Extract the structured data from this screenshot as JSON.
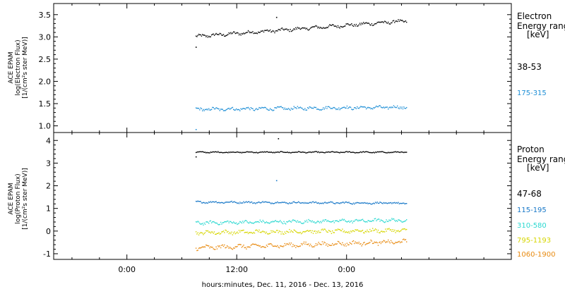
{
  "chart_data": [
    {
      "type": "scatter",
      "ylabel": [
        "ACE EPAM",
        "log(Electron Flux)",
        "[1/(cm²s ster MeV)]"
      ],
      "ylim": [
        0.85,
        3.75
      ],
      "yticks": [
        "1.0",
        "1.5",
        "2.0",
        "2.5",
        "3.0",
        "3.5"
      ],
      "yticks_values": [
        1.0,
        1.5,
        2.0,
        2.5,
        3.0,
        3.5
      ],
      "legend_title": [
        "Electron",
        "Energy ranges",
        "[keV]"
      ],
      "series": [
        {
          "name": "38-53",
          "color": "#000000",
          "start": 3.02,
          "end": 3.37,
          "noise": 0.035,
          "extra_points": [
            [
              7.5,
              2.78
            ],
            [
              16.3,
              3.45
            ]
          ]
        },
        {
          "name": "175-315",
          "color": "#1f8fd6",
          "start": 1.38,
          "end": 1.43,
          "noise": 0.035,
          "extra_points": [
            [
              7.5,
              0.93
            ]
          ]
        }
      ]
    },
    {
      "type": "scatter",
      "ylabel": [
        "ACE EPAM",
        "log(Proton Flux)",
        "[1/(cm²s ster MeV)]"
      ],
      "ylim": [
        -1.25,
        4.35
      ],
      "yticks": [
        "-1",
        "0",
        "1",
        "2",
        "3",
        "4"
      ],
      "yticks_values": [
        -1,
        0,
        1,
        2,
        3,
        4
      ],
      "legend_title": [
        "Proton",
        "Energy ranges",
        "[keV]"
      ],
      "series": [
        {
          "name": "47-68",
          "color": "#000000",
          "start": 3.5,
          "end": 3.5,
          "noise": 0.025,
          "extra_points": [
            [
              7.5,
              3.3
            ],
            [
              16.5,
              4.1
            ]
          ]
        },
        {
          "name": "115-195",
          "color": "#1878c8",
          "start": 1.3,
          "end": 1.25,
          "noise": 0.04,
          "extra_points": [
            [
              16.3,
              2.25
            ]
          ]
        },
        {
          "name": "310-580",
          "color": "#2ad8d0",
          "start": 0.38,
          "end": 0.5,
          "noise": 0.07,
          "extra_points": []
        },
        {
          "name": "795-1193",
          "color": "#d6d600",
          "start": -0.05,
          "end": 0.05,
          "noise": 0.08,
          "extra_points": []
        },
        {
          "name": "1060-1900",
          "color": "#e88a10",
          "start": -0.72,
          "end": -0.45,
          "noise": 0.09,
          "extra_points": []
        }
      ]
    }
  ],
  "x_axis": {
    "range_hours": [
      -8,
      42
    ],
    "data_start_hour": 7.5,
    "data_end_hour": 30.5,
    "ticks": [
      {
        "hour": 0,
        "label": "0:00"
      },
      {
        "hour": 12,
        "label": "12:00"
      },
      {
        "hour": 24,
        "label": "0:00"
      }
    ],
    "xlabel": "hours:minutes, Dec. 11, 2016 - Dec. 13, 2016"
  }
}
